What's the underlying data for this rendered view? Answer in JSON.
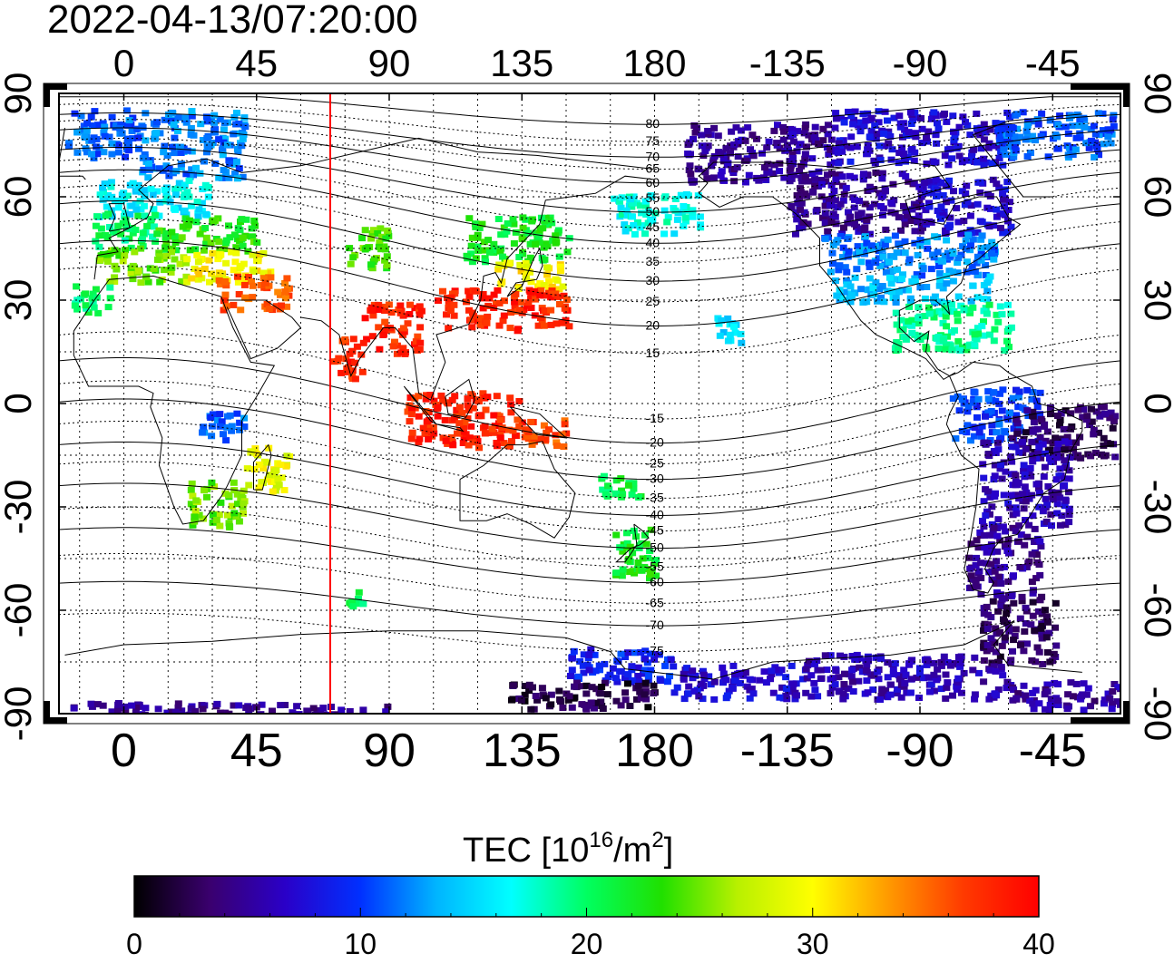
{
  "title": "2022-04-13/07:20:00",
  "colorbar": {
    "label_main": "TEC  [10",
    "label_sup1": "16",
    "label_mid": "/m",
    "label_sup2": "2",
    "label_end": "]",
    "ticks": [
      0,
      10,
      20,
      30,
      40
    ],
    "min": 0,
    "max": 40,
    "colors": [
      "#000000",
      "#3a006e",
      "#2a00c8",
      "#0030ff",
      "#00b4ff",
      "#00ffff",
      "#00ff60",
      "#20e000",
      "#b8f000",
      "#ffff00",
      "#ff9a00",
      "#ff3a00",
      "#ff0000"
    ]
  },
  "chart_data": {
    "type": "heatmap",
    "title": "2022-04-13/07:20:00",
    "projection": "equirectangular",
    "x_axis": {
      "ticks": [
        0,
        45,
        90,
        135,
        180,
        -135,
        -90,
        -45
      ],
      "range_longitude_east": [
        -22,
        338
      ],
      "label": ""
    },
    "y_axis": {
      "ticks": [
        90,
        60,
        30,
        0,
        -30,
        -60,
        -90
      ],
      "range_latitude": [
        -90,
        90
      ],
      "label": ""
    },
    "grid": true,
    "marker_longitude": 70,
    "marker_color": "#ff0000",
    "magnetic_latitude_labels": [
      {
        "text": "80",
        "lat": 81
      },
      {
        "text": "75",
        "lat": 76
      },
      {
        "text": "70",
        "lat": 71.5
      },
      {
        "text": "65",
        "lat": 68
      },
      {
        "text": "60",
        "lat": 64
      },
      {
        "text": "55",
        "lat": 59.5
      },
      {
        "text": "50",
        "lat": 55.5
      },
      {
        "text": "45",
        "lat": 51
      },
      {
        "text": "40",
        "lat": 46.5
      },
      {
        "text": "35",
        "lat": 41
      },
      {
        "text": "30",
        "lat": 35.5
      },
      {
        "text": "25",
        "lat": 29.5
      },
      {
        "text": "20",
        "lat": 22.5
      },
      {
        "text": "15",
        "lat": 14.5
      },
      {
        "text": "-15",
        "lat": -4.5
      },
      {
        "text": "-20",
        "lat": -11.5
      },
      {
        "text": "-25",
        "lat": -17.5
      },
      {
        "text": "-30",
        "lat": -22
      },
      {
        "text": "-35",
        "lat": -27.5
      },
      {
        "text": "-40",
        "lat": -32.5
      },
      {
        "text": "-45",
        "lat": -37
      },
      {
        "text": "-50",
        "lat": -42
      },
      {
        "text": "-55",
        "lat": -47.5
      },
      {
        "text": "-60",
        "lat": -52
      },
      {
        "text": "-65",
        "lat": -58
      },
      {
        "text": "-70",
        "lat": -64.5
      },
      {
        "text": "-75",
        "lat": -72
      }
    ],
    "magnetic_latitude_label_lon": 180,
    "tec_regions": [
      {
        "lon": [
          -20,
          5
        ],
        "lat": [
          72,
          86
        ],
        "tec": 11
      },
      {
        "lon": [
          5,
          40
        ],
        "lat": [
          66,
          86
        ],
        "tec": 12
      },
      {
        "lon": [
          -10,
          30
        ],
        "lat": [
          55,
          66
        ],
        "tec": 16
      },
      {
        "lon": [
          -12,
          10
        ],
        "lat": [
          46,
          56
        ],
        "tec": 20
      },
      {
        "lon": [
          10,
          45
        ],
        "lat": [
          45,
          55
        ],
        "tec": 23
      },
      {
        "lon": [
          -10,
          20
        ],
        "lat": [
          36,
          46
        ],
        "tec": 25
      },
      {
        "lon": [
          20,
          50
        ],
        "lat": [
          36,
          45
        ],
        "tec": 30
      },
      {
        "lon": [
          30,
          55
        ],
        "lat": [
          28,
          38
        ],
        "tec": 36
      },
      {
        "lon": [
          -18,
          -5
        ],
        "lat": [
          27,
          35
        ],
        "tec": 20
      },
      {
        "lon": [
          75,
          90
        ],
        "lat": [
          40,
          52
        ],
        "tec": 24
      },
      {
        "lon": [
          115,
          150
        ],
        "lat": [
          42,
          55
        ],
        "tec": 22
      },
      {
        "lon": [
          125,
          148
        ],
        "lat": [
          34,
          42
        ],
        "tec": 30
      },
      {
        "lon": [
          105,
          150
        ],
        "lat": [
          22,
          34
        ],
        "tec": 38
      },
      {
        "lon": [
          80,
          100
        ],
        "lat": [
          15,
          30
        ],
        "tec": 38
      },
      {
        "lon": [
          70,
          80
        ],
        "lat": [
          8,
          20
        ],
        "tec": 38
      },
      {
        "lon": [
          95,
          135
        ],
        "lat": [
          -12,
          4
        ],
        "tec": 38
      },
      {
        "lon": [
          135,
          150
        ],
        "lat": [
          -12,
          -4
        ],
        "tec": 36
      },
      {
        "lon": [
          20,
          40
        ],
        "lat": [
          -35,
          -22
        ],
        "tec": 25
      },
      {
        "lon": [
          40,
          55
        ],
        "lat": [
          -25,
          -12
        ],
        "tec": 29
      },
      {
        "lon": [
          25,
          40
        ],
        "lat": [
          -10,
          -2
        ],
        "tec": 11
      },
      {
        "lon": [
          165,
          180
        ],
        "lat": [
          -50,
          -35
        ],
        "tec": 22
      },
      {
        "lon": [
          160,
          175
        ],
        "lat": [
          -27,
          -20
        ],
        "tec": 21
      },
      {
        "lon": [
          75,
          80
        ],
        "lat": [
          -58,
          -50
        ],
        "tec": 21
      },
      {
        "lon": [
          190,
          240
        ],
        "lat": [
          65,
          82
        ],
        "tec": 5
      },
      {
        "lon": [
          240,
          300
        ],
        "lat": [
          70,
          86
        ],
        "tec": 7
      },
      {
        "lon": [
          295,
          335
        ],
        "lat": [
          72,
          86
        ],
        "tec": 11
      },
      {
        "lon": [
          225,
          270
        ],
        "lat": [
          50,
          68
        ],
        "tec": 5
      },
      {
        "lon": [
          270,
          300
        ],
        "lat": [
          50,
          66
        ],
        "tec": 7
      },
      {
        "lon": [
          235,
          295
        ],
        "lat": [
          38,
          50
        ],
        "tec": 12
      },
      {
        "lon": [
          240,
          295
        ],
        "lat": [
          30,
          38
        ],
        "tec": 14
      },
      {
        "lon": [
          260,
          300
        ],
        "lat": [
          16,
          30
        ],
        "tec": 19
      },
      {
        "lon": [
          165,
          195
        ],
        "lat": [
          50,
          62
        ],
        "tec": 17
      },
      {
        "lon": [
          200,
          210
        ],
        "lat": [
          18,
          26
        ],
        "tec": 15
      },
      {
        "lon": [
          280,
          310
        ],
        "lat": [
          -10,
          5
        ],
        "tec": 10
      },
      {
        "lon": [
          300,
          335
        ],
        "lat": [
          -15,
          0
        ],
        "tec": 3
      },
      {
        "lon": [
          290,
          320
        ],
        "lat": [
          -35,
          -10
        ],
        "tec": 6
      },
      {
        "lon": [
          285,
          310
        ],
        "lat": [
          -55,
          -35
        ],
        "tec": 5
      },
      {
        "lon": [
          290,
          315
        ],
        "lat": [
          -75,
          -55
        ],
        "tec": 3
      },
      {
        "lon": [
          150,
          185
        ],
        "lat": [
          -80,
          -70
        ],
        "tec": 9
      },
      {
        "lon": [
          130,
          180
        ],
        "lat": [
          -88,
          -80
        ],
        "tec": 2
      },
      {
        "lon": [
          185,
          230
        ],
        "lat": [
          -85,
          -75
        ],
        "tec": 7
      },
      {
        "lon": [
          230,
          300
        ],
        "lat": [
          -85,
          -72
        ],
        "tec": 6
      },
      {
        "lon": [
          300,
          338
        ],
        "lat": [
          -88,
          -80
        ],
        "tec": 5
      },
      {
        "lon": [
          -20,
          60
        ],
        "lat": [
          -90,
          -86
        ],
        "tec": 5
      },
      {
        "lon": [
          60,
          90
        ],
        "lat": [
          -90,
          -87
        ],
        "tec": 5
      }
    ]
  }
}
